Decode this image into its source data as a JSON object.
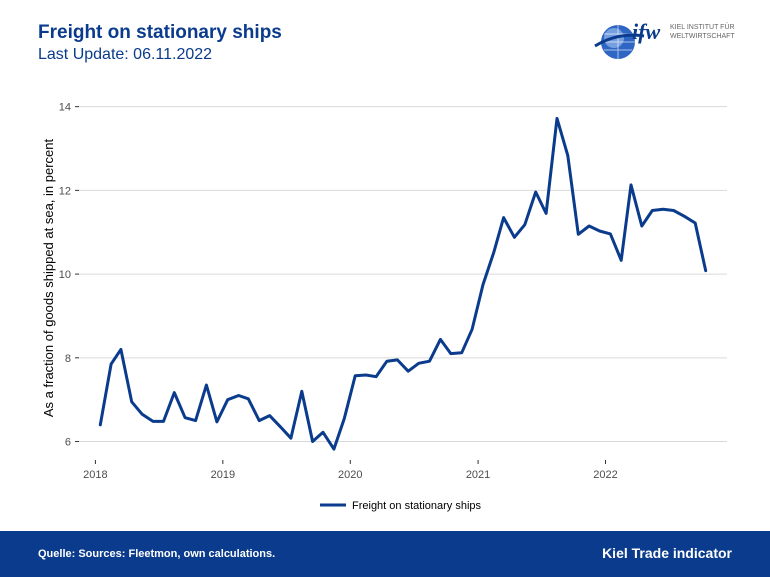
{
  "header": {
    "title": "Freight on stationary ships",
    "subtitle": "Last Update: 06.11.2022"
  },
  "logo": {
    "mark": "ifw",
    "line1": "KIEL INSTITUT FÜR",
    "line2": "WELTWIRTSCHAFT"
  },
  "footer": {
    "source": "Quelle: Sources: Fleetmon, own calculations.",
    "brand": "Kiel Trade indicator"
  },
  "colors": {
    "brand": "#0a3b8c",
    "line": "#0a3b8c",
    "grid": "#d9d9d9"
  },
  "chart_data": {
    "type": "line",
    "title": "",
    "xlabel": "",
    "ylabel": "As a fraction of goods shipped at sea, in percent",
    "xlim": [
      "2017-11-15",
      "2022-12-15"
    ],
    "ylim": [
      5.75,
      14.35
    ],
    "yticks": [
      6,
      8,
      10,
      12,
      14
    ],
    "xticks": [
      {
        "date": "2018-01-01",
        "label": "2018"
      },
      {
        "date": "2019-01-01",
        "label": "2019"
      },
      {
        "date": "2020-01-01",
        "label": "2020"
      },
      {
        "date": "2021-01-01",
        "label": "2021"
      },
      {
        "date": "2022-01-01",
        "label": "2022"
      }
    ],
    "grid": true,
    "legend": "bottom",
    "series": [
      {
        "name": "Freight on stationary ships",
        "x": [
          "2018-01",
          "2018-02",
          "2018-03",
          "2018-04",
          "2018-05",
          "2018-06",
          "2018-07",
          "2018-08",
          "2018-09",
          "2018-10",
          "2018-11",
          "2018-12",
          "2019-01",
          "2019-02",
          "2019-03",
          "2019-04",
          "2019-05",
          "2019-06",
          "2019-07",
          "2019-08",
          "2019-09",
          "2019-10",
          "2019-11",
          "2019-12",
          "2020-01",
          "2020-02",
          "2020-03",
          "2020-04",
          "2020-05",
          "2020-06",
          "2020-07",
          "2020-08",
          "2020-09",
          "2020-10",
          "2020-11",
          "2020-12",
          "2021-01",
          "2021-02",
          "2021-03",
          "2021-04",
          "2021-05",
          "2021-06",
          "2021-07",
          "2021-08",
          "2021-09",
          "2021-10",
          "2021-11",
          "2021-12",
          "2022-01",
          "2022-02",
          "2022-03",
          "2022-04",
          "2022-05",
          "2022-06",
          "2022-07",
          "2022-08",
          "2022-09",
          "2022-10"
        ],
        "y": [
          6.4,
          7.85,
          8.2,
          6.95,
          6.65,
          6.48,
          6.48,
          7.17,
          6.57,
          6.5,
          7.35,
          6.47,
          7.0,
          7.1,
          7.02,
          6.5,
          6.62,
          6.35,
          6.08,
          7.2,
          6.0,
          6.22,
          5.82,
          6.55,
          7.57,
          7.59,
          7.55,
          7.92,
          7.95,
          7.68,
          7.87,
          7.92,
          8.44,
          8.1,
          8.12,
          8.68,
          9.75,
          10.52,
          11.35,
          10.88,
          11.18,
          11.96,
          11.45,
          13.72,
          12.83,
          10.95,
          11.15,
          11.03,
          10.96,
          10.33,
          12.13,
          11.15,
          11.52,
          11.55,
          11.52,
          11.38,
          11.22,
          10.08
        ]
      }
    ]
  }
}
